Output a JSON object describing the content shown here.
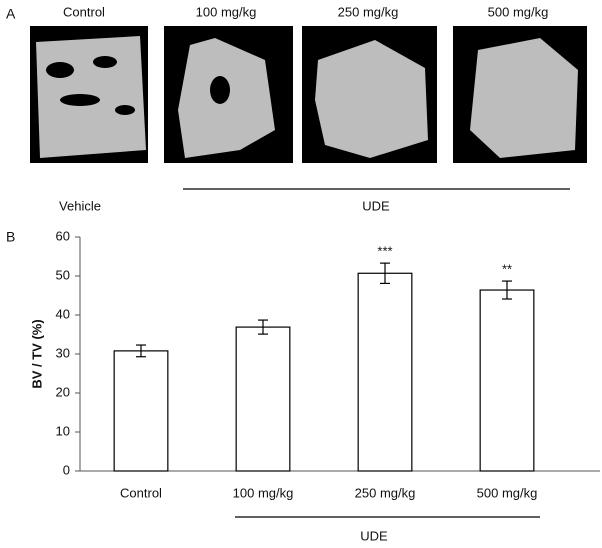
{
  "panel_a": {
    "label": "A",
    "titles": [
      "Control",
      "100 mg/kg",
      "250 mg/kg",
      "500 mg/kg"
    ],
    "group_labels": [
      "Vehicle",
      "UDE"
    ]
  },
  "chart_data": {
    "type": "bar",
    "panel_label": "B",
    "ylabel": "BV / TV (%)",
    "categories": [
      "Control",
      "100 mg/kg",
      "250 mg/kg",
      "500 mg/kg"
    ],
    "values": [
      30.8,
      36.9,
      50.7,
      46.4
    ],
    "errors": [
      1.5,
      1.8,
      2.6,
      2.3
    ],
    "significance": [
      null,
      null,
      "***",
      "**"
    ],
    "group_label": "UDE",
    "color": "#ffffff",
    "ylim": [
      0,
      60
    ],
    "yticks": [
      0,
      10,
      20,
      30,
      40,
      50,
      60
    ],
    "grid": false
  }
}
